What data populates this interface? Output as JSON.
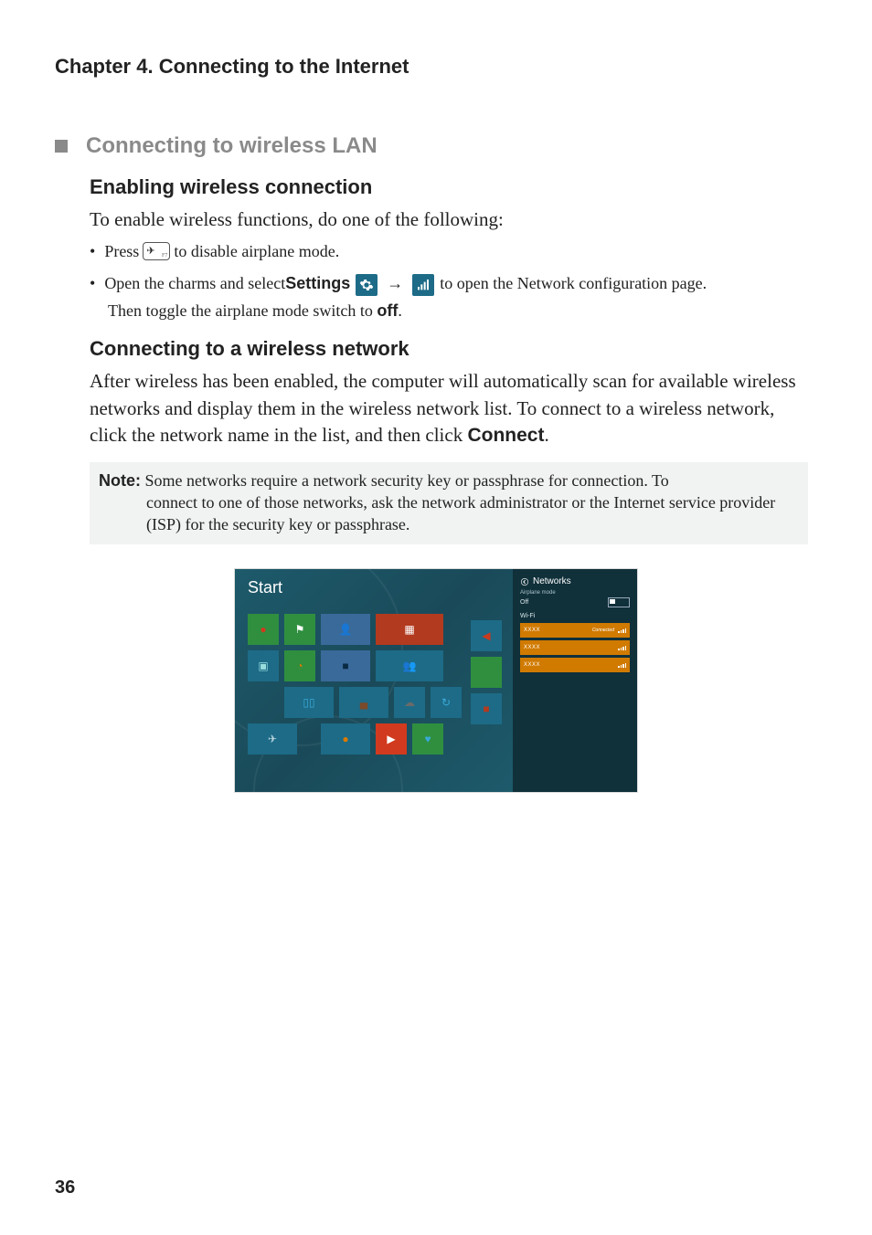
{
  "chapter_title": "Chapter 4. Connecting to the Internet",
  "section": {
    "title": "Connecting to wireless LAN",
    "title_color": "#8a8a8a",
    "bullet_color": "#8a8a8a"
  },
  "sub1": {
    "title": "Enabling wireless connection",
    "intro": "To enable wireless functions, do one of the following:",
    "bullet1_pre": "Press ",
    "bullet1_post": " to disable airplane mode.",
    "key_symbol": "✈",
    "key_label": "F7",
    "bullet2_pre": "Open the charms and select ",
    "bullet2_settings": "Settings",
    "bullet2_arrow": "→",
    "bullet2_post": " to open the Network configuration page.",
    "bullet2_line2_pre": "Then toggle the airplane mode switch to ",
    "bullet2_line2_bold": "off",
    "bullet2_line2_post": "."
  },
  "sub2": {
    "title": "Connecting to a wireless network",
    "body_pre": "After wireless has been enabled, the computer will automatically scan for available wireless networks and display them in the wireless network list. To connect to a wireless network, click the network name in the list, and then click ",
    "body_bold": "Connect",
    "body_post": "."
  },
  "note": {
    "label": "Note:",
    "text1": " Some networks require a network security key or passphrase for connection. To",
    "text2": "connect to one of those networks, ask the network administrator or the Internet service provider (ISP) for the security key or passphrase."
  },
  "screenshot": {
    "start_label": "Start",
    "networks_title": "Networks",
    "airplane_label": "Airplane mode",
    "off_label": "Off",
    "wifi_label": "Wi-Fi",
    "net_name": "XXXX",
    "connected": "Connected",
    "tiles": {
      "row1": [
        {
          "w": "t-sm",
          "bg": "#2f8f3f",
          "glyph": "●",
          "gcolor": "#d13a1e"
        },
        {
          "w": "t-sm",
          "bg": "#2f8f3f",
          "glyph": "⚑",
          "gcolor": "#ffffff"
        },
        {
          "w": "t-md",
          "bg": "#3a6a9a",
          "glyph": "👤",
          "gcolor": "#ffffff"
        },
        {
          "w": "t-lg",
          "bg": "#b23a1e",
          "glyph": "▦",
          "gcolor": "#ffffff"
        }
      ],
      "row2": [
        {
          "w": "t-sm",
          "bg": "#1d6b87",
          "glyph": "▣",
          "gcolor": "#9dd"
        },
        {
          "w": "t-sm",
          "bg": "#2f8f3f",
          "glyph": "◔",
          "gcolor": "#d87a00"
        },
        {
          "w": "t-md",
          "bg": "#3a6a9a",
          "glyph": "■",
          "gcolor": "#0a2a44"
        },
        {
          "w": "t-lg",
          "bg": "#1d6b87",
          "glyph": "👥",
          "gcolor": "#f4b642"
        }
      ],
      "row3": [
        {
          "w": "t-md",
          "bg": "#1d6b87",
          "glyph": "▯▯",
          "gcolor": "#3aa9d8",
          "ml": "40"
        },
        {
          "w": "t-md",
          "bg": "#1d6b87",
          "glyph": "▄",
          "gcolor": "#7a4a2a"
        },
        {
          "w": "t-sm",
          "bg": "#1d6b87",
          "glyph": "☁",
          "gcolor": "#6a6a6a"
        },
        {
          "w": "t-sm",
          "bg": "#1d6b87",
          "glyph": "↻",
          "gcolor": "#3aa9d8"
        }
      ],
      "row4": [
        {
          "w": "t-md",
          "bg": "#1d6b87",
          "glyph": "✈",
          "gcolor": "#bcd6de",
          "ml": "0"
        },
        {
          "w": "t-md",
          "bg": "#1d6b87",
          "glyph": "●",
          "gcolor": "#d87a00",
          "ml": "20"
        },
        {
          "w": "t-sm",
          "bg": "#d13a1e",
          "glyph": "▶",
          "gcolor": "#ffffff"
        },
        {
          "w": "t-sm",
          "bg": "#2f8f3f",
          "glyph": "♥",
          "gcolor": "#3aa9d8"
        }
      ],
      "side": [
        {
          "bg": "#1d6b87",
          "glyph": "◀",
          "gcolor": "#c83a1e"
        },
        {
          "bg": "#2f8f3f",
          "glyph": " ",
          "gcolor": "#fff"
        },
        {
          "bg": "#1d6b87",
          "glyph": "■",
          "gcolor": "#b23a1e"
        }
      ]
    }
  },
  "page_number": "36",
  "colors": {
    "icon_bg": "#1d6b87",
    "note_bg": "#f1f2f2",
    "orange": "#d07a00"
  }
}
